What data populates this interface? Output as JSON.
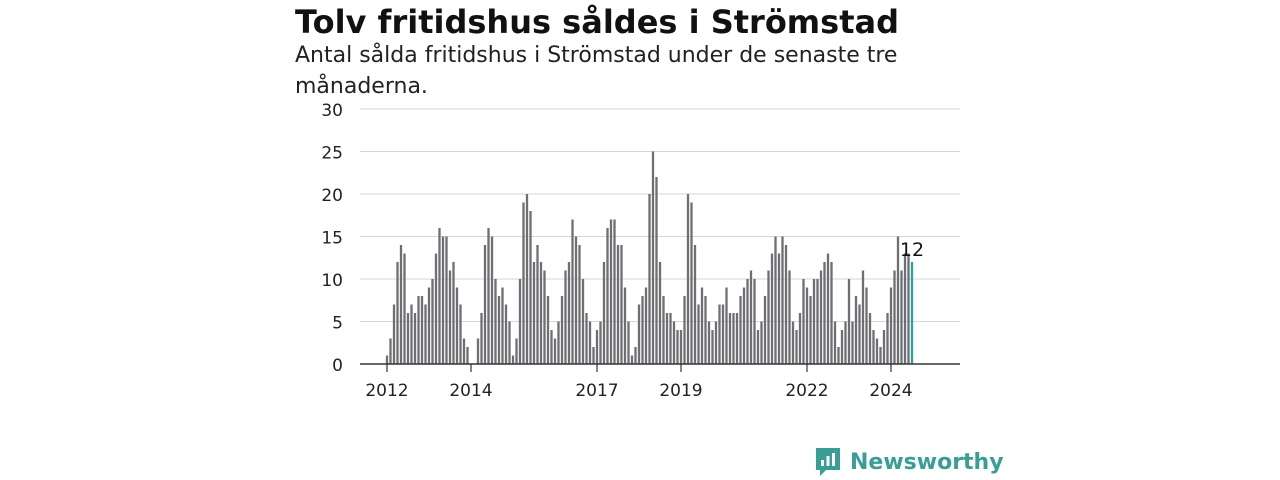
{
  "title": "Tolv fritidshus såldes i Strömstad",
  "subtitle": "Antal sålda fritidshus i Strömstad under de senaste tre månaderna.",
  "brand": {
    "name": "Newsworthy",
    "icon": "newsworthy-logo-icon",
    "color": "#3a9e98"
  },
  "chart_data": {
    "type": "bar",
    "x_start": "2012-01",
    "x_frequency": "monthly",
    "x_tick_labels": [
      "2012",
      "2014",
      "2017",
      "2019",
      "2022",
      "2024"
    ],
    "y_ticks": [
      0,
      5,
      10,
      15,
      20,
      25,
      30
    ],
    "ylim": [
      0,
      30
    ],
    "grid": true,
    "bar_color": "#6f6e72",
    "highlight_color": "#26a69a",
    "highlight_label": "12",
    "values": [
      1,
      3,
      7,
      12,
      14,
      13,
      6,
      7,
      6,
      8,
      8,
      7,
      9,
      10,
      13,
      16,
      15,
      15,
      11,
      12,
      9,
      7,
      3,
      2,
      0,
      0,
      3,
      6,
      14,
      16,
      15,
      10,
      8,
      9,
      7,
      5,
      1,
      3,
      10,
      19,
      20,
      18,
      12,
      14,
      12,
      11,
      8,
      4,
      3,
      5,
      8,
      11,
      12,
      17,
      15,
      14,
      10,
      6,
      5,
      2,
      4,
      5,
      12,
      16,
      17,
      17,
      14,
      14,
      9,
      5,
      1,
      2,
      7,
      8,
      9,
      20,
      25,
      22,
      12,
      8,
      6,
      6,
      5,
      4,
      4,
      8,
      20,
      19,
      14,
      7,
      9,
      8,
      5,
      4,
      5,
      7,
      7,
      9,
      6,
      6,
      6,
      8,
      9,
      10,
      11,
      10,
      4,
      5,
      8,
      11,
      13,
      15,
      13,
      15,
      14,
      11,
      5,
      4,
      6,
      10,
      9,
      8,
      10,
      10,
      11,
      12,
      13,
      12,
      5,
      2,
      4,
      5,
      10,
      5,
      8,
      7,
      11,
      9,
      6,
      4,
      3,
      2,
      4,
      6,
      9,
      11,
      15,
      11,
      13,
      13,
      12
    ]
  }
}
